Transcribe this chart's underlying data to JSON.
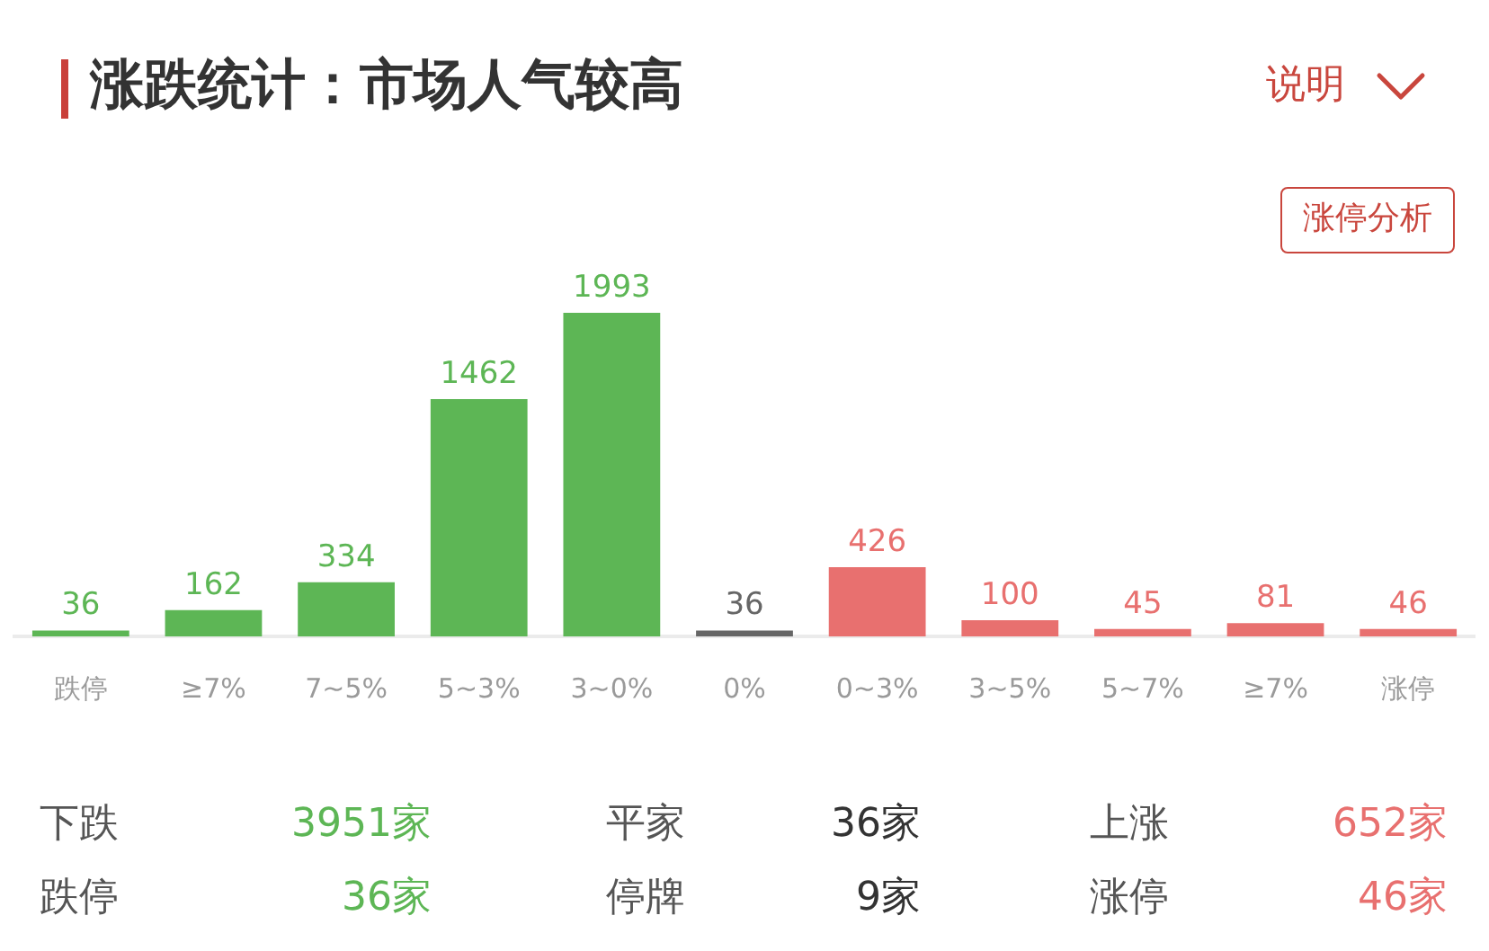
{
  "chart_data": {
    "type": "bar",
    "title": "涨跌统计：市场人气较高",
    "categories": [
      "跌停",
      "≥7%",
      "7~5%",
      "5~3%",
      "3~0%",
      "0%",
      "0~3%",
      "3~5%",
      "5~7%",
      "≥7%",
      "涨停"
    ],
    "values": [
      36,
      162,
      334,
      1462,
      1993,
      36,
      426,
      100,
      45,
      81,
      46
    ],
    "colors": [
      "#5db655",
      "#5db655",
      "#5db655",
      "#5db655",
      "#5db655",
      "#666666",
      "#e8706f",
      "#e8706f",
      "#e8706f",
      "#e8706f",
      "#e8706f"
    ],
    "data_labels": true,
    "tick_labels": "x",
    "annotations": [
      "说明",
      "涨停分析",
      "下跌",
      "3951家",
      "平家",
      "36家",
      "上涨",
      "652家",
      "跌停",
      "36家",
      "停牌",
      "9家",
      "涨停",
      "46家"
    ]
  }
}
